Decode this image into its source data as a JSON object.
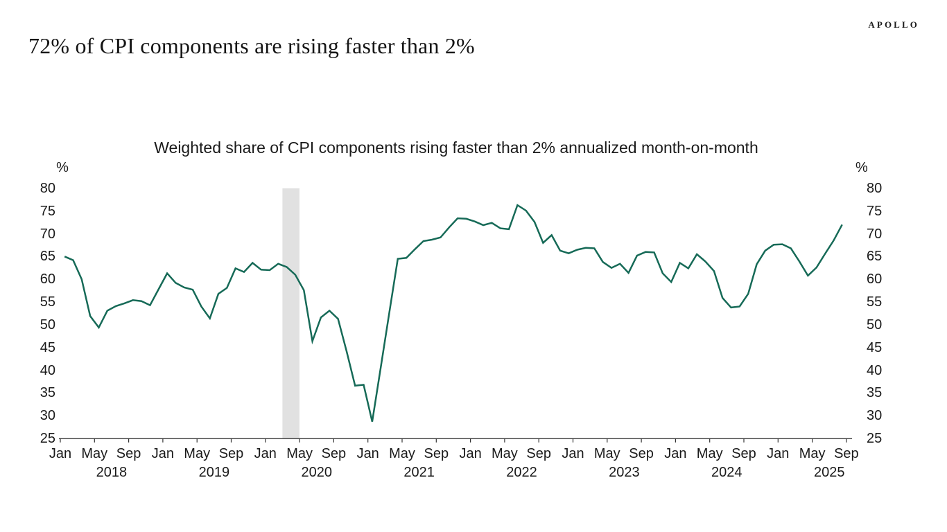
{
  "header": {
    "logo": "APOLLO",
    "title": "72% of CPI components are rising faster than 2%"
  },
  "chart_data": {
    "type": "line",
    "title": "Weighted share of CPI components rising faster than 2% annualized month-on-month",
    "unit": "%",
    "frequency": "monthly",
    "x_start": "Jan 2018",
    "x_end": "Aug 2025",
    "latest_value": 72,
    "ylim": [
      25,
      80
    ],
    "grid": "off",
    "legend": "none",
    "y_ticks": [
      80,
      75,
      70,
      65,
      60,
      55,
      50,
      45,
      40,
      35,
      30,
      25
    ],
    "x_tick_month_labels": [
      "Jan",
      "May",
      "Sep"
    ],
    "x_years": [
      "2018",
      "2019",
      "2020",
      "2021",
      "2022",
      "2023",
      "2024",
      "2025"
    ],
    "shaded_region": {
      "name": "recession-band",
      "from": "Mar 2020",
      "to": "May 2020",
      "from_month_index": 26,
      "to_month_index": 28,
      "color": "#e1e1e1"
    },
    "series": [
      {
        "name": "Weighted share of CPI components rising faster than 2% annualized month-on-month",
        "color": "#166a57",
        "values": [
          65.0,
          64.2,
          60.0,
          51.9,
          49.4,
          53.1,
          54.1,
          54.7,
          55.4,
          55.2,
          54.3,
          57.8,
          61.3,
          59.2,
          58.2,
          57.7,
          54.0,
          51.4,
          56.8,
          58.1,
          62.4,
          61.6,
          63.6,
          62.1,
          62.0,
          63.4,
          62.7,
          61.0,
          57.6,
          46.4,
          51.6,
          53.1,
          51.3,
          44.2,
          36.6,
          36.8,
          28.7,
          40.6,
          52.6,
          64.5,
          64.7,
          66.6,
          68.4,
          68.7,
          69.2,
          71.4,
          73.4,
          73.3,
          72.7,
          71.9,
          72.4,
          71.2,
          71.0,
          76.3,
          75.1,
          72.6,
          68.0,
          69.7,
          66.3,
          65.7,
          66.5,
          66.9,
          66.8,
          63.8,
          62.5,
          63.4,
          61.4,
          65.2,
          66.0,
          65.9,
          61.3,
          59.4,
          63.6,
          62.4,
          65.5,
          63.9,
          61.8,
          55.9,
          53.8,
          54.0,
          56.8,
          63.3,
          66.3,
          67.6,
          67.7,
          66.8,
          63.9,
          60.8,
          62.6,
          65.6,
          68.5,
          72.0
        ]
      }
    ]
  }
}
